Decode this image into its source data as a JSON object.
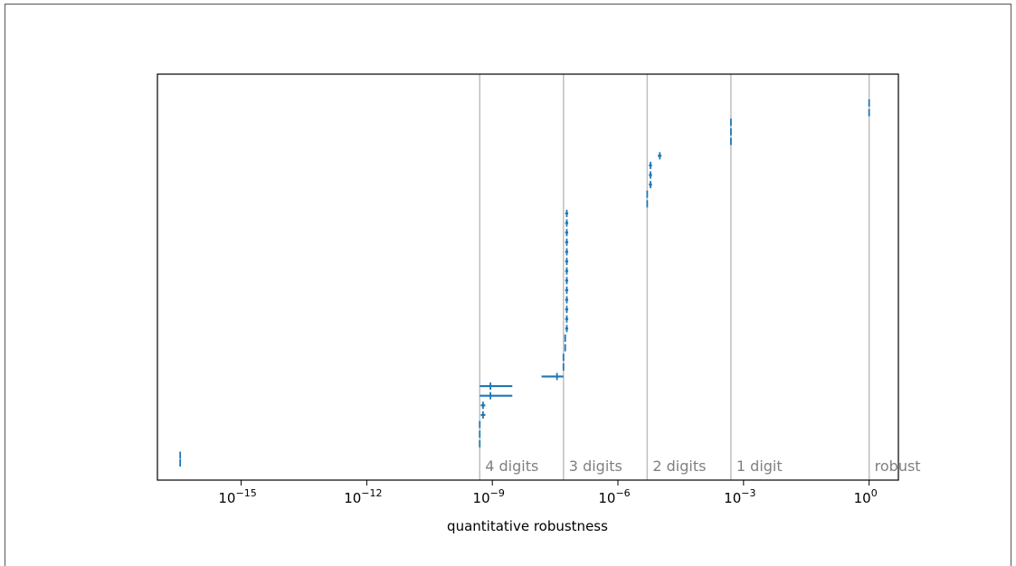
{
  "chart_data": {
    "type": "scatter",
    "title": "",
    "xlabel": "quantitative robustness",
    "ylabel": "",
    "x_scale": "log",
    "xlim": [
      1e-17,
      5
    ],
    "x_ticks": [
      {
        "value": 1e-15,
        "base": "10",
        "exp": "−15"
      },
      {
        "value": 1e-12,
        "base": "10",
        "exp": "−12"
      },
      {
        "value": 1e-09,
        "base": "10",
        "exp": "−9"
      },
      {
        "value": 1e-06,
        "base": "10",
        "exp": "−6"
      },
      {
        "value": 0.001,
        "base": "10",
        "exp": "−3"
      },
      {
        "value": 1,
        "base": "10",
        "exp": "0"
      }
    ],
    "threshold_lines": [
      {
        "x": 5e-10,
        "label": "4 digits"
      },
      {
        "x": 5e-08,
        "label": "3 digits"
      },
      {
        "x": 5e-06,
        "label": "2 digits"
      },
      {
        "x": 0.0005,
        "label": "1 digit"
      },
      {
        "x": 1,
        "label": "robust"
      }
    ],
    "grid": false,
    "series_color": "#1f77b4",
    "threshold_color": "#bfbfbf",
    "n_rows": 40,
    "points": [
      {
        "row": 0,
        "x": 3.5e-17,
        "xerr": [
          3.5e-17,
          3.5e-17
        ]
      },
      {
        "row": 0.8,
        "x": 3.5e-17,
        "xerr": [
          3.5e-17,
          3.5e-17
        ]
      },
      {
        "row": 2,
        "x": 5e-10,
        "xerr": [
          5e-10,
          5e-10
        ]
      },
      {
        "row": 3,
        "x": 5e-10,
        "xerr": [
          5e-10,
          5e-10
        ]
      },
      {
        "row": 4,
        "x": 5e-10,
        "xerr": [
          5e-10,
          5e-10
        ]
      },
      {
        "row": 5,
        "x": 6e-10,
        "xerr": [
          5.3e-10,
          6.8e-10
        ]
      },
      {
        "row": 6,
        "x": 6e-10,
        "xerr": [
          5.3e-10,
          6.8e-10
        ]
      },
      {
        "row": 7,
        "x": 9e-10,
        "xerr": [
          5e-10,
          3e-09
        ]
      },
      {
        "row": 8,
        "x": 9e-10,
        "xerr": [
          5e-10,
          3e-09
        ]
      },
      {
        "row": 9,
        "x": 3.5e-08,
        "xerr": [
          1.5e-08,
          5e-08
        ]
      },
      {
        "row": 10,
        "x": 5e-08,
        "xerr": [
          5e-08,
          5e-08
        ]
      },
      {
        "row": 11,
        "x": 5e-08,
        "xerr": [
          5e-08,
          5e-08
        ]
      },
      {
        "row": 12,
        "x": 5.5e-08,
        "xerr": [
          5.3e-08,
          5.7e-08
        ]
      },
      {
        "row": 13,
        "x": 5.5e-08,
        "xerr": [
          5.3e-08,
          5.7e-08
        ]
      },
      {
        "row": 14,
        "x": 6e-08,
        "xerr": [
          5.5e-08,
          6.5e-08
        ]
      },
      {
        "row": 15,
        "x": 6e-08,
        "xerr": [
          5.5e-08,
          6.5e-08
        ]
      },
      {
        "row": 16,
        "x": 6e-08,
        "xerr": [
          5.5e-08,
          6.5e-08
        ]
      },
      {
        "row": 17,
        "x": 6e-08,
        "xerr": [
          5.5e-08,
          6.5e-08
        ]
      },
      {
        "row": 18,
        "x": 6e-08,
        "xerr": [
          5.5e-08,
          6.5e-08
        ]
      },
      {
        "row": 19,
        "x": 6e-08,
        "xerr": [
          5.5e-08,
          6.5e-08
        ]
      },
      {
        "row": 20,
        "x": 6e-08,
        "xerr": [
          5.5e-08,
          6.5e-08
        ]
      },
      {
        "row": 21,
        "x": 6e-08,
        "xerr": [
          5.5e-08,
          6.5e-08
        ]
      },
      {
        "row": 22,
        "x": 6e-08,
        "xerr": [
          5.5e-08,
          6.5e-08
        ]
      },
      {
        "row": 23,
        "x": 6e-08,
        "xerr": [
          5.5e-08,
          6.5e-08
        ]
      },
      {
        "row": 24,
        "x": 6e-08,
        "xerr": [
          5.5e-08,
          6.5e-08
        ]
      },
      {
        "row": 25,
        "x": 6e-08,
        "xerr": [
          5.5e-08,
          6.5e-08
        ]
      },
      {
        "row": 26,
        "x": 6e-08,
        "xerr": [
          5.5e-08,
          6.5e-08
        ]
      },
      {
        "row": 27,
        "x": 5e-06,
        "xerr": [
          5e-06,
          5e-06
        ]
      },
      {
        "row": 28,
        "x": 5e-06,
        "xerr": [
          5e-06,
          5e-06
        ]
      },
      {
        "row": 29,
        "x": 6e-06,
        "xerr": [
          5.5e-06,
          6.5e-06
        ]
      },
      {
        "row": 30,
        "x": 6e-06,
        "xerr": [
          5.5e-06,
          6.5e-06
        ]
      },
      {
        "row": 31,
        "x": 6e-06,
        "xerr": [
          5.5e-06,
          6.5e-06
        ]
      },
      {
        "row": 32,
        "x": 1e-05,
        "xerr": [
          9e-06,
          1.1e-05
        ]
      },
      {
        "row": 33.5,
        "x": 0.0005,
        "xerr": [
          0.0005,
          0.0005
        ]
      },
      {
        "row": 34.5,
        "x": 0.0005,
        "xerr": [
          0.0005,
          0.0005
        ]
      },
      {
        "row": 35.5,
        "x": 0.0005,
        "xerr": [
          0.0005,
          0.0005
        ]
      },
      {
        "row": 36.5,
        "x": 1,
        "xerr": [
          1,
          1
        ]
      },
      {
        "row": 37.5,
        "x": 1,
        "xerr": [
          1,
          1
        ]
      }
    ]
  }
}
